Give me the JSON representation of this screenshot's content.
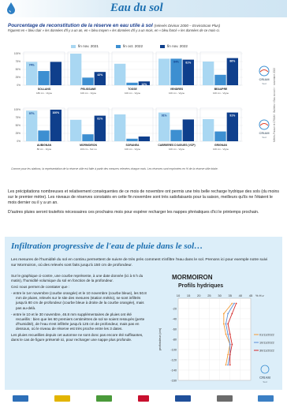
{
  "header": {
    "title": "Eau du sol"
  },
  "panel": {
    "title": "Pourcentage de reconstitution de la réserve en eau utile à sol",
    "title_suffix": "(relevés Divinar 2000 – EnviroScan Plus)",
    "subtitle": "Figurent en « bleu clair » les données d'il y a un an, en « bleu moyen » les données d'il y a un mois, en « bleu foncé » les données de ce mois-ci.",
    "legend": [
      {
        "label": "fin nov. 2021",
        "color": "#a9d7f2"
      },
      {
        "label": "fin oct. 2022",
        "color": "#3d8fd1"
      },
      {
        "label": "fin nov. 2022",
        "color": "#0f3f8c"
      }
    ],
    "side_note": "Météo-France et CRIAM · Bulletin « Eau du sol » · novembre 2022",
    "logo_text": "CRIAM",
    "logo_sub": "Sud",
    "footnote": "Comme pour les stations, la représentation de la réserve utile est faite à partir des mesures relevées chaque mois. Les réserves sont exprimées en % de la réserve utile totale."
  },
  "chart_data": [
    {
      "type": "bar",
      "title": "",
      "ylim": [
        0,
        100
      ],
      "categories": [
        "SOLLANS",
        "PELISSANE",
        "TOSSE",
        "VENDRES",
        "BEAUPRE"
      ],
      "sublabels": [
        "180 cm - Vigne",
        "100 cm - Vigne",
        "100 cm - Vigne",
        "100 cm - Vigne",
        "100 cm - Vigne"
      ],
      "series": [
        {
          "name": "fin nov. 2021",
          "values": [
            74,
            100,
            68,
            84,
            75
          ]
        },
        {
          "name": "fin oct. 2022",
          "values": [
            45,
            24,
            8,
            84,
            33
          ]
        },
        {
          "name": "fin nov. 2022",
          "values": [
            74,
            42,
            12,
            81,
            86
          ]
        }
      ],
      "data_labels": [
        [
          "74%",
          "",
          "",
          "",
          ""
        ],
        [
          "",
          "",
          "",
          "84%",
          ""
        ],
        [
          "",
          "42%",
          "12%",
          "81%",
          "86%"
        ]
      ]
    },
    {
      "type": "bar",
      "title": "",
      "ylim": [
        0,
        100
      ],
      "categories": [
        "AUBIGNAN",
        "MORMOIRON",
        "SORANEA",
        "CABRIERES D'AIGUES (VCP)",
        "GRIGNAN"
      ],
      "sublabels": [
        "80 cm - Vigne",
        "100 cm - Sol nu",
        "100 cm - Vigne",
        "100 cm - Vigne",
        "100 cm - Vigne"
      ],
      "series": [
        {
          "name": "fin nov. 2021",
          "values": [
            97,
            68,
            85,
            91,
            70
          ]
        },
        {
          "name": "fin oct. 2022",
          "values": [
            34,
            22,
            8,
            36,
            31
          ]
        },
        {
          "name": "fin nov. 2022",
          "values": [
            100,
            81,
            15,
            69,
            91
          ]
        }
      ],
      "data_labels": [
        [
          "97%",
          "",
          "",
          "91%",
          ""
        ],
        [
          "",
          "",
          "",
          "",
          ""
        ],
        [
          "100%",
          "81%",
          "",
          "",
          "91%"
        ]
      ]
    },
    {
      "type": "line",
      "title": "Profils hydriques",
      "xlabel": "% H.v",
      "ylabel": "profondeur (cm)",
      "xlim": [
        10,
        45
      ],
      "ylim": [
        -160,
        0
      ],
      "xticks": [
        10,
        15,
        20,
        25,
        30,
        35,
        40,
        45
      ],
      "yticks": [
        -20,
        -40,
        -60,
        -80,
        -100,
        -120,
        -140,
        -160
      ],
      "series": [
        {
          "name": "01/11/2022",
          "color": "#f39a35",
          "x": [
            36,
            32,
            32,
            33,
            35,
            34,
            33
          ],
          "y": [
            -10,
            -30,
            -50,
            -70,
            -90,
            -110,
            -130
          ]
        },
        {
          "name": "10/11/2022",
          "color": "#5b8ed6",
          "x": [
            37,
            34,
            33,
            34,
            35,
            35,
            34
          ],
          "y": [
            -10,
            -30,
            -50,
            -70,
            -90,
            -110,
            -130
          ]
        },
        {
          "name": "30/11/2022",
          "color": "#d42a2a",
          "x": [
            38,
            36,
            34,
            35,
            36,
            35,
            35
          ],
          "y": [
            -10,
            -30,
            -50,
            -70,
            -90,
            -110,
            -130
          ]
        }
      ]
    }
  ],
  "paragraphs": {
    "p1": "Les précipitations nombreuses et relativement conséquentes de ce mois de novembre ont permis une très belle recharge hydrique des sols (du moins sur le premier mètre). Les niveaux de réserves constatés en cette fin novembre sont très satisfaisants pour la saison, meilleurs qu'ils ne l'étaient le mois dernier ou il y a un an.",
    "p2": "D'autres pluies seront toutefois nécessaires ces prochains mois pour espérer recharger les nappes phréatiques d'ici le printemps prochain."
  },
  "info": {
    "title": "Infiltration progressive de l'eau de pluie dans le sol…",
    "intro": "Les mesures de l'humidité du sol en continu permettent de suivre de très près comment s'infiltre l'eau dans le sol. Prenons ici pour exemple notre suivi sur Mormoiron, où des relevés sont faits jusqu'à 150 cm de profondeur.",
    "lead": "Sur le graphique ci-contre, une courbe représente, à une date donnée (ici à 6 h du matin), l'humidité volumique du sol en fonction de la profondeur.",
    "constat": "Ceci nous permet de constater que :",
    "bullet1": "- entre le 1er novembre (courbe orangée) et le 10 novembre (courbe bleue), les 50.8 mm de pluies, relevés sur le site des mesures (station météo), se sont infiltrés jusqu'à 80 cm de profondeur (courbe bleue à droite de la courbe orangée), mais pas au-delà.",
    "bullet2": "- entre le 10 et le 30 novembre, 46.8 mm supplémentaires de pluies ont été recueillis : bien que les 60 premiers centimètres de sol se soient ressuyés (perte d'humidité), de l'eau s'est infiltrée jusqu'à 125 cm de profondeur, mais pas en dessous, où le niveau de réserve est très proche entre les 3 dates.",
    "outro": "Les pluies recueillies depuis cet automne ne sont donc pas encore été suffisantes, dans le cas de figure présenté ici, pour recharger une nappe plus profonde.",
    "profile_site": "MORMOIRON",
    "profile_title": "Profils hydriques",
    "logo_text": "CRIAM",
    "logo_sub": "Sud"
  },
  "footer": {
    "logos": [
      {
        "name": "partner-logo-1",
        "color": "#2d6fb8"
      },
      {
        "name": "partner-logo-2",
        "color": "#e2b400"
      },
      {
        "name": "partner-logo-3",
        "color": "#4a9a3a"
      },
      {
        "name": "partner-logo-4",
        "color": "#c8102e"
      },
      {
        "name": "partner-logo-5",
        "color": "#1f4f9a"
      },
      {
        "name": "partner-logo-6",
        "color": "#6b6b6b"
      },
      {
        "name": "partner-logo-7",
        "color": "#3b7fc4"
      }
    ]
  }
}
